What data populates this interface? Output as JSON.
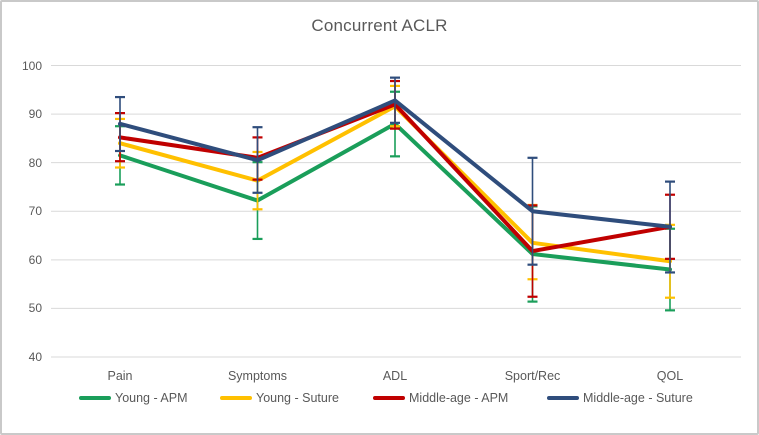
{
  "chart_data": {
    "type": "line",
    "title": "Concurrent ACLR",
    "categories": [
      "Pain",
      "Symptoms",
      "ADL",
      "Sport/Rec",
      "QOL"
    ],
    "y_axis": {
      "min": 40,
      "max": 100,
      "step": 10,
      "ticks": [
        100,
        90,
        80,
        70,
        60,
        50,
        40
      ]
    },
    "grid": true,
    "gridline_color": "#d9d9d9",
    "text_color": "#595959",
    "legend_position": "bottom",
    "error_bars": true,
    "series": [
      {
        "name": "Young - APM",
        "color": "#1a9e5a",
        "values": [
          81.5,
          72.2,
          88.0,
          61.2,
          58.0
        ],
        "err_low": [
          75.5,
          64.3,
          81.3,
          51.4,
          49.6
        ],
        "err_high": [
          87.5,
          80.1,
          94.6,
          71.0,
          66.4
        ]
      },
      {
        "name": "Young - Suture",
        "color": "#ffc000",
        "values": [
          84.0,
          76.3,
          91.6,
          63.5,
          59.7
        ],
        "err_low": [
          79.0,
          70.4,
          87.5,
          56.0,
          52.2
        ],
        "err_high": [
          89.0,
          82.2,
          95.8,
          71.3,
          67.2
        ]
      },
      {
        "name": "Middle-age - APM",
        "color": "#c00000",
        "values": [
          85.2,
          81.0,
          92.0,
          61.8,
          66.8
        ],
        "err_low": [
          80.3,
          76.5,
          87.0,
          52.4,
          60.2
        ],
        "err_high": [
          90.2,
          85.2,
          96.8,
          71.2,
          73.4
        ]
      },
      {
        "name": "Middle-age - Suture",
        "color": "#2f4d7c",
        "values": [
          88.0,
          80.5,
          92.8,
          70.0,
          66.8
        ],
        "err_low": [
          82.4,
          73.8,
          88.2,
          59.0,
          57.4
        ],
        "err_high": [
          93.5,
          87.3,
          97.5,
          81.0,
          76.1
        ]
      }
    ]
  }
}
